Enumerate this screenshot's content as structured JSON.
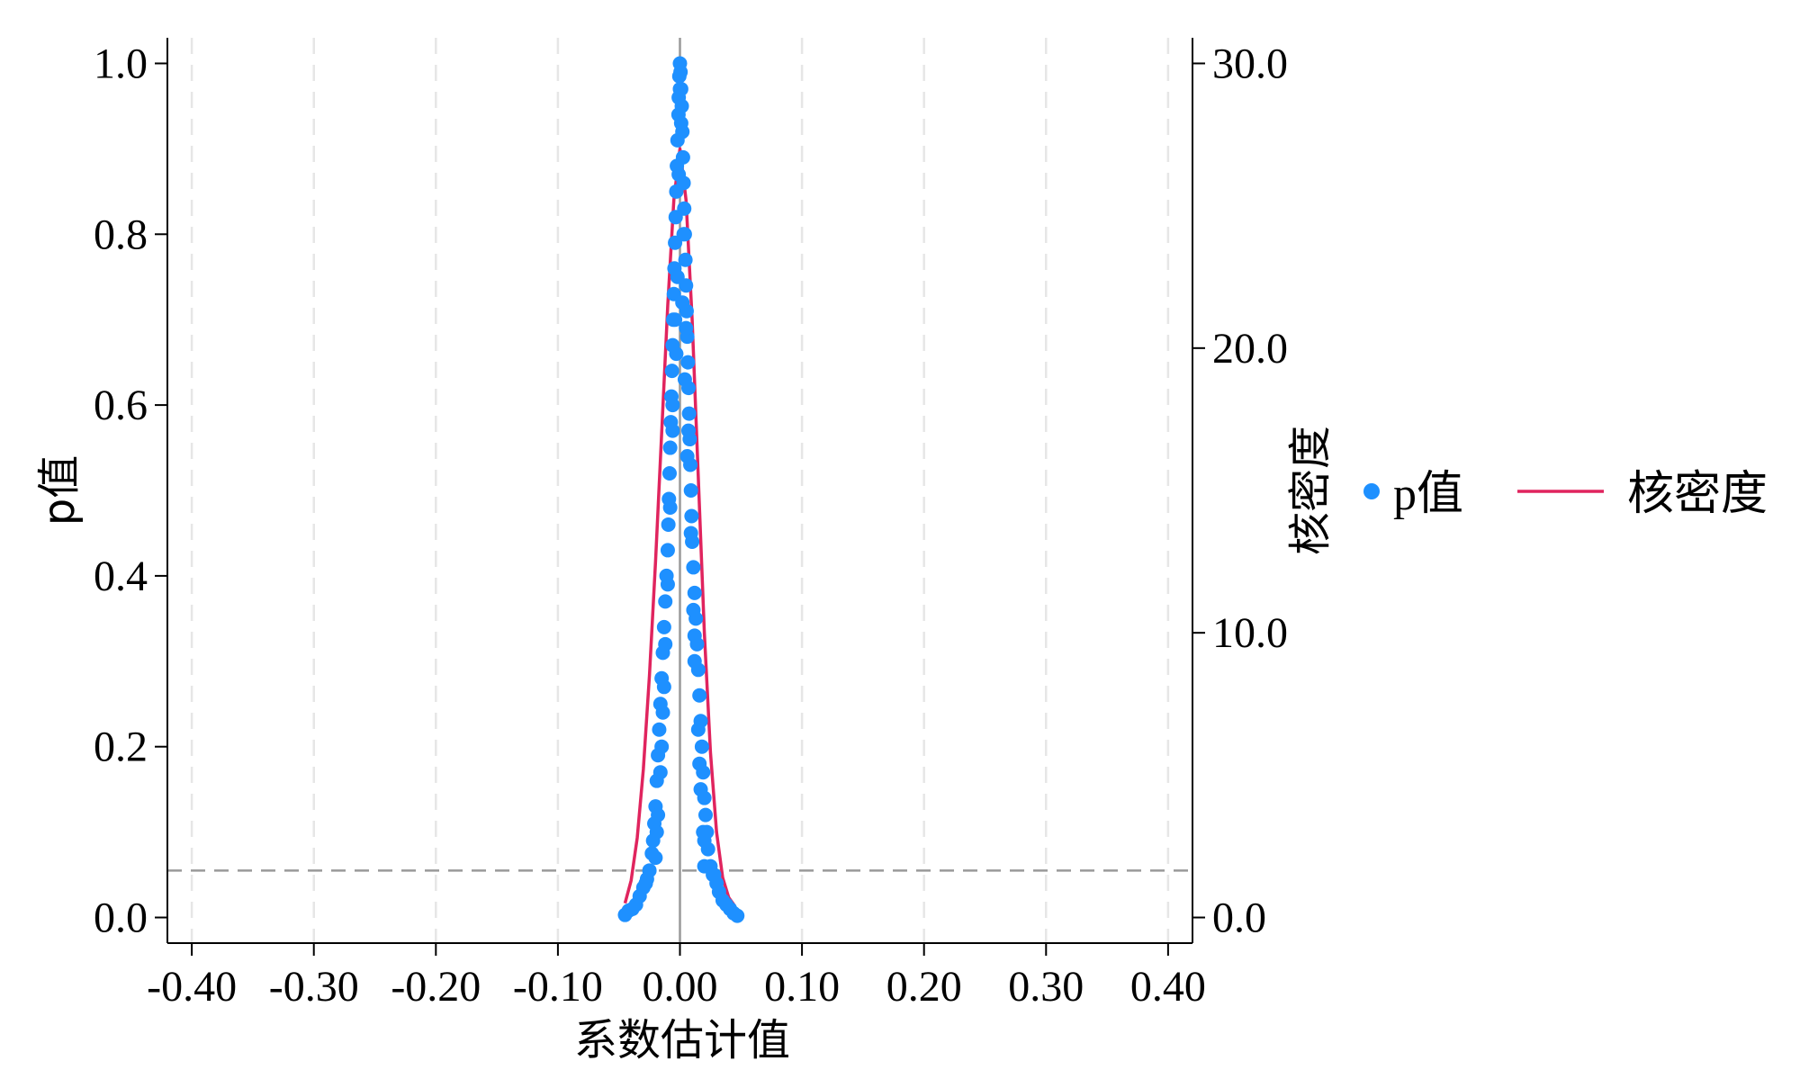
{
  "chart_data": {
    "type": "scatter",
    "xlabel": "系数估计值",
    "ylabel_left": "p值",
    "ylabel_right": "核密度",
    "xlim": [
      -0.42,
      0.42
    ],
    "ylim_left": [
      -0.03,
      1.03
    ],
    "ylim_right": [
      -0.9,
      30.9
    ],
    "xticks": [
      -0.4,
      -0.3,
      -0.2,
      -0.1,
      0.0,
      0.1,
      0.2,
      0.3,
      0.4
    ],
    "xtick_labels": [
      "-0.40",
      "-0.30",
      "-0.20",
      "-0.10",
      "0.00",
      "0.10",
      "0.20",
      "0.30",
      "0.40"
    ],
    "yticks_left": [
      0.0,
      0.2,
      0.4,
      0.6,
      0.8,
      1.0
    ],
    "ytick_labels_left": [
      "0.0",
      "0.2",
      "0.4",
      "0.6",
      "0.8",
      "1.0"
    ],
    "yticks_right": [
      0,
      10,
      20,
      30
    ],
    "ytick_labels_right": [
      "0.0",
      "10.0",
      "20.0",
      "30.0"
    ],
    "reference_hline_p": 0.055,
    "reference_vline_x": 0.0,
    "grid": "vertical dashed",
    "legend": {
      "placement": "right",
      "entries": [
        "p值",
        "核密度"
      ]
    },
    "colors": {
      "points": "#1e90ff",
      "density": "#e0245e",
      "reference": "#999999",
      "grid": "#e6e6e6"
    },
    "series": [
      {
        "name": "p值",
        "kind": "scatter",
        "axis": "left",
        "points": [
          [
            0.0,
            1.0
          ],
          [
            0.0005,
            0.99
          ],
          [
            -0.0005,
            0.985
          ],
          [
            0.001,
            0.97
          ],
          [
            -0.001,
            0.96
          ],
          [
            0.0015,
            0.95
          ],
          [
            -0.0012,
            0.94
          ],
          [
            0.002,
            0.92
          ],
          [
            -0.002,
            0.91
          ],
          [
            0.0025,
            0.89
          ],
          [
            -0.0025,
            0.88
          ],
          [
            0.003,
            0.86
          ],
          [
            -0.003,
            0.85
          ],
          [
            0.0035,
            0.83
          ],
          [
            -0.0035,
            0.82
          ],
          [
            0.004,
            0.8
          ],
          [
            -0.004,
            0.79
          ],
          [
            0.0045,
            0.77
          ],
          [
            -0.0045,
            0.76
          ],
          [
            0.005,
            0.74
          ],
          [
            -0.005,
            0.73
          ],
          [
            0.0055,
            0.71
          ],
          [
            -0.0055,
            0.7
          ],
          [
            0.006,
            0.68
          ],
          [
            -0.006,
            0.67
          ],
          [
            0.0065,
            0.65
          ],
          [
            -0.0065,
            0.64
          ],
          [
            0.007,
            0.62
          ],
          [
            -0.007,
            0.61
          ],
          [
            0.0075,
            0.59
          ],
          [
            -0.0075,
            0.58
          ],
          [
            0.008,
            0.56
          ],
          [
            -0.008,
            0.55
          ],
          [
            0.0085,
            0.53
          ],
          [
            -0.0085,
            0.52
          ],
          [
            0.009,
            0.5
          ],
          [
            -0.009,
            0.49
          ],
          [
            0.0095,
            0.47
          ],
          [
            -0.0095,
            0.46
          ],
          [
            0.01,
            0.44
          ],
          [
            -0.01,
            0.43
          ],
          [
            0.011,
            0.41
          ],
          [
            -0.011,
            0.4
          ],
          [
            0.012,
            0.38
          ],
          [
            -0.012,
            0.37
          ],
          [
            0.013,
            0.35
          ],
          [
            -0.013,
            0.34
          ],
          [
            0.014,
            0.32
          ],
          [
            -0.014,
            0.31
          ],
          [
            0.015,
            0.29
          ],
          [
            -0.015,
            0.28
          ],
          [
            0.016,
            0.26
          ],
          [
            -0.016,
            0.25
          ],
          [
            0.017,
            0.23
          ],
          [
            -0.017,
            0.22
          ],
          [
            0.018,
            0.2
          ],
          [
            -0.018,
            0.19
          ],
          [
            0.019,
            0.17
          ],
          [
            -0.019,
            0.16
          ],
          [
            0.02,
            0.14
          ],
          [
            -0.02,
            0.13
          ],
          [
            0.021,
            0.12
          ],
          [
            -0.021,
            0.11
          ],
          [
            0.022,
            0.1
          ],
          [
            -0.022,
            0.09
          ],
          [
            0.023,
            0.08
          ],
          [
            -0.023,
            0.075
          ],
          [
            0.025,
            0.06
          ],
          [
            -0.025,
            0.055
          ],
          [
            0.027,
            0.05
          ],
          [
            -0.027,
            0.045
          ],
          [
            0.03,
            0.04
          ],
          [
            -0.03,
            0.035
          ],
          [
            0.032,
            0.03
          ],
          [
            -0.033,
            0.025
          ],
          [
            0.035,
            0.02
          ],
          [
            -0.036,
            0.015
          ],
          [
            0.038,
            0.015
          ],
          [
            -0.039,
            0.01
          ],
          [
            0.041,
            0.01
          ],
          [
            -0.042,
            0.008
          ],
          [
            0.044,
            0.005
          ],
          [
            -0.045,
            0.003
          ],
          [
            0.047,
            0.002
          ],
          [
            -0.002,
            0.75
          ],
          [
            0.002,
            0.72
          ],
          [
            -0.003,
            0.66
          ],
          [
            0.004,
            0.63
          ],
          [
            -0.006,
            0.57
          ],
          [
            0.006,
            0.54
          ],
          [
            -0.012,
            0.32
          ],
          [
            0.012,
            0.3
          ],
          [
            -0.015,
            0.2
          ],
          [
            0.016,
            0.18
          ],
          [
            -0.018,
            0.12
          ],
          [
            0.019,
            0.1
          ],
          [
            -0.02,
            0.07
          ],
          [
            0.02,
            0.06
          ],
          [
            0.012,
            0.33
          ],
          [
            -0.013,
            0.27
          ],
          [
            0.0,
            0.97
          ],
          [
            0.001,
            0.93
          ],
          [
            -0.001,
            0.87
          ],
          [
            0.003,
            0.8
          ],
          [
            -0.004,
            0.7
          ],
          [
            0.005,
            0.69
          ],
          [
            -0.006,
            0.6
          ],
          [
            0.007,
            0.57
          ],
          [
            -0.008,
            0.48
          ],
          [
            0.009,
            0.45
          ],
          [
            -0.01,
            0.39
          ],
          [
            0.011,
            0.36
          ],
          [
            -0.014,
            0.24
          ],
          [
            0.015,
            0.22
          ],
          [
            -0.016,
            0.17
          ],
          [
            0.017,
            0.15
          ],
          [
            -0.019,
            0.1
          ],
          [
            0.02,
            0.09
          ],
          [
            0.028,
            0.05
          ],
          [
            -0.028,
            0.04
          ]
        ]
      },
      {
        "name": "核密度",
        "kind": "line",
        "axis": "right",
        "points": [
          [
            -0.045,
            0.5
          ],
          [
            -0.04,
            1.3
          ],
          [
            -0.035,
            2.8
          ],
          [
            -0.03,
            5.2
          ],
          [
            -0.025,
            8.5
          ],
          [
            -0.02,
            12.5
          ],
          [
            -0.015,
            17.0
          ],
          [
            -0.01,
            21.5
          ],
          [
            -0.005,
            25.2
          ],
          [
            0.0,
            27.0
          ],
          [
            0.005,
            25.2
          ],
          [
            0.01,
            21.0
          ],
          [
            0.015,
            15.5
          ],
          [
            0.02,
            10.0
          ],
          [
            0.025,
            5.8
          ],
          [
            0.03,
            3.0
          ],
          [
            0.035,
            1.4
          ],
          [
            0.04,
            0.7
          ],
          [
            0.045,
            0.4
          ]
        ]
      }
    ]
  }
}
